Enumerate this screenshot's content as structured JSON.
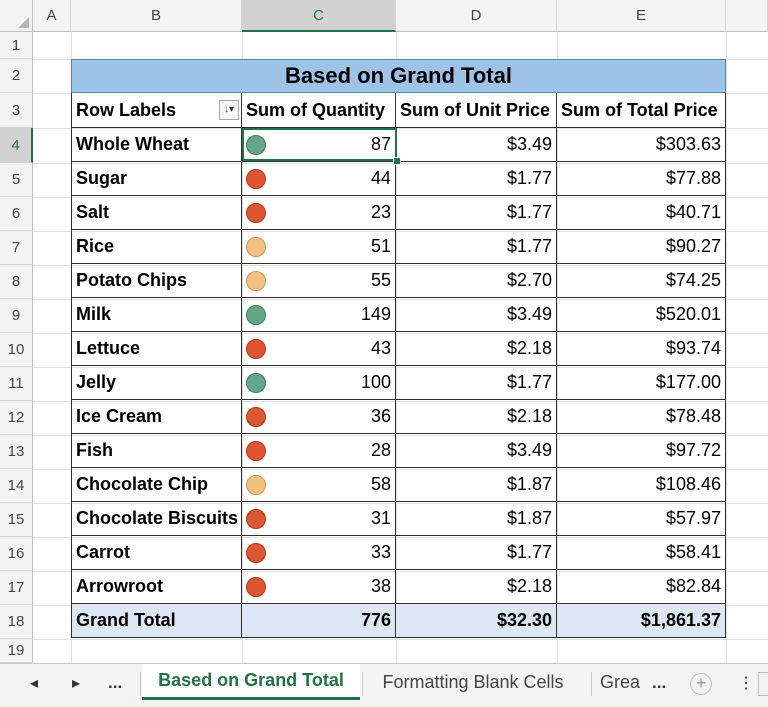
{
  "columns": [
    "A",
    "B",
    "C",
    "D",
    "E"
  ],
  "rows": [
    "1",
    "2",
    "3",
    "4",
    "5",
    "6",
    "7",
    "8",
    "9",
    "10",
    "11",
    "12",
    "13",
    "14",
    "15",
    "16",
    "17",
    "18",
    "19"
  ],
  "pivot": {
    "title": "Based on Grand Total",
    "headers": [
      "Row Labels",
      "Sum of Quantity",
      "Sum of Unit Price",
      "Sum of Total Price"
    ],
    "filter_icon": "sort-filter-icon",
    "rows": [
      {
        "label": "Whole Wheat",
        "qty": "87",
        "unit": "$3.49",
        "total": "$303.63",
        "icon": "green"
      },
      {
        "label": "Sugar",
        "qty": "44",
        "unit": "$1.77",
        "total": "$77.88",
        "icon": "red"
      },
      {
        "label": "Salt",
        "qty": "23",
        "unit": "$1.77",
        "total": "$40.71",
        "icon": "red"
      },
      {
        "label": "Rice",
        "qty": "51",
        "unit": "$1.77",
        "total": "$90.27",
        "icon": "yellow"
      },
      {
        "label": "Potato Chips",
        "qty": "55",
        "unit": "$2.70",
        "total": "$74.25",
        "icon": "yellow"
      },
      {
        "label": "Milk",
        "qty": "149",
        "unit": "$3.49",
        "total": "$520.01",
        "icon": "green"
      },
      {
        "label": "Lettuce",
        "qty": "43",
        "unit": "$2.18",
        "total": "$93.74",
        "icon": "red"
      },
      {
        "label": "Jelly",
        "qty": "100",
        "unit": "$1.77",
        "total": "$177.00",
        "icon": "green"
      },
      {
        "label": "Ice Cream",
        "qty": "36",
        "unit": "$2.18",
        "total": "$78.48",
        "icon": "red"
      },
      {
        "label": "Fish",
        "qty": "28",
        "unit": "$3.49",
        "total": "$97.72",
        "icon": "red"
      },
      {
        "label": "Chocolate Chip",
        "qty": "58",
        "unit": "$1.87",
        "total": "$108.46",
        "icon": "yellow"
      },
      {
        "label": "Chocolate Biscuits",
        "qty": "31",
        "unit": "$1.87",
        "total": "$57.97",
        "icon": "red"
      },
      {
        "label": "Carrot",
        "qty": "33",
        "unit": "$1.77",
        "total": "$58.41",
        "icon": "red"
      },
      {
        "label": "Arrowroot",
        "qty": "38",
        "unit": "$2.18",
        "total": "$82.84",
        "icon": "red"
      }
    ],
    "grand_total": {
      "label": "Grand Total",
      "qty": "776",
      "unit": "$32.30",
      "total": "$1,861.37"
    }
  },
  "icon_colors": {
    "green": "#63a68a",
    "red": "#dd5632",
    "yellow": "#f0c27e"
  },
  "tabs": {
    "prev_label": "◂",
    "next_label": "▸",
    "more_label": "...",
    "items": [
      "Based on Grand Total",
      "Formatting Blank Cells",
      "Grea"
    ],
    "overflow_label": "...",
    "more_options_label": "⋮"
  },
  "accent_color": "#217346"
}
